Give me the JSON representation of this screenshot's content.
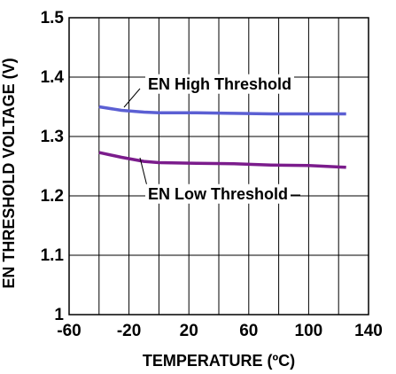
{
  "chart_data": {
    "type": "line",
    "title": "",
    "xlabel": "TEMPERATURE (ºC)",
    "ylabel": "EN THRESHOLD VOLTAGE (V)",
    "xlim": [
      -60,
      140
    ],
    "ylim": [
      1.0,
      1.5
    ],
    "x_ticks": [
      -60,
      -20,
      20,
      60,
      100,
      140
    ],
    "x_tick_labels": [
      "-60",
      "-20",
      "20",
      "60",
      "100",
      "140"
    ],
    "y_ticks": [
      1.0,
      1.1,
      1.2,
      1.3,
      1.4,
      1.5
    ],
    "y_tick_labels": [
      "1",
      "1.1",
      "1.2",
      "1.3",
      "1.4",
      "1.5"
    ],
    "x_grid_step": 20,
    "y_grid_step": 0.1,
    "grid": true,
    "series": [
      {
        "name": "EN High Threshold",
        "color": "#5b5fd3",
        "x": [
          -40,
          -25,
          -10,
          0,
          25,
          50,
          75,
          100,
          125
        ],
        "y": [
          1.35,
          1.344,
          1.341,
          1.34,
          1.34,
          1.339,
          1.338,
          1.338,
          1.338
        ]
      },
      {
        "name": "EN Low Threshold",
        "color": "#7b1c8c",
        "x": [
          -40,
          -25,
          -10,
          0,
          25,
          50,
          75,
          100,
          125
        ],
        "y": [
          1.273,
          1.265,
          1.258,
          1.256,
          1.255,
          1.254,
          1.252,
          1.251,
          1.248
        ]
      }
    ],
    "annotations": [
      {
        "text": "EN High Threshold",
        "series": 0
      },
      {
        "text": "EN Low Threshold",
        "series": 1
      }
    ]
  }
}
